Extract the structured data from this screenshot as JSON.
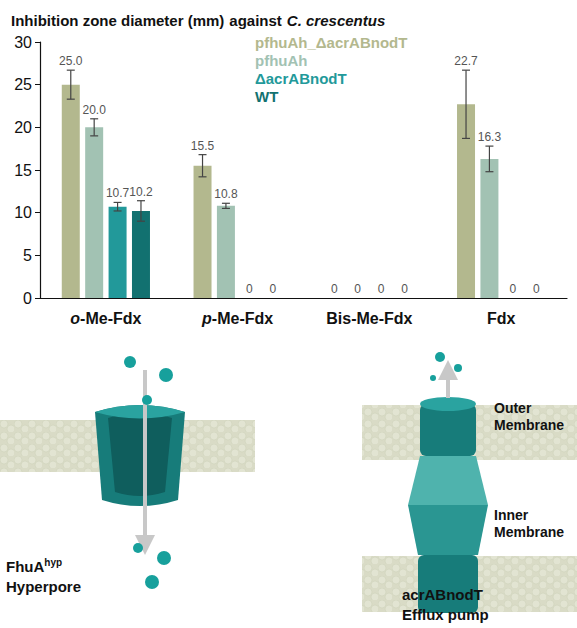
{
  "chart_data": {
    "type": "bar",
    "title": "Inhibition zone diameter (mm)",
    "subtitle": "against C. crescentus",
    "categories": [
      "o-Me-Fdx",
      "p-Me-Fdx",
      "Bis-Me-Fdx",
      "Fdx"
    ],
    "series": [
      {
        "name": "pfhuAh_ΔacrABnodT",
        "color": "#b3b88e",
        "values": [
          25.0,
          15.5,
          0,
          22.7
        ],
        "value_labels": [
          "25.0",
          "15.5",
          "0",
          "22.7"
        ],
        "errors": [
          1.7,
          1.3,
          null,
          4.0
        ]
      },
      {
        "name": "pfhuAh",
        "color": "#a2c2b3",
        "values": [
          20.0,
          10.8,
          0,
          16.3
        ],
        "value_labels": [
          "20.0",
          "10.8",
          "0",
          "16.3"
        ],
        "errors": [
          1.0,
          0.3,
          null,
          1.5
        ]
      },
      {
        "name": "ΔacrABnodT",
        "color": "#22999a",
        "values": [
          10.7,
          0,
          0,
          0
        ],
        "value_labels": [
          "10.7",
          "0",
          "0",
          "0"
        ],
        "errors": [
          0.5,
          null,
          null,
          null
        ]
      },
      {
        "name": "WT",
        "color": "#127170",
        "values": [
          10.2,
          0,
          0,
          0
        ],
        "value_labels": [
          "10.2",
          "0",
          "0",
          "0"
        ],
        "errors": [
          1.2,
          null,
          null,
          null
        ]
      }
    ],
    "ylim": [
      0,
      30
    ],
    "yticks": [
      0,
      5,
      10,
      15,
      20,
      25,
      30
    ],
    "grid": false,
    "legend": "top",
    "data_labels": true
  },
  "diagram": {
    "hyperpore": {
      "name": "FhuA",
      "superscript": "hyp",
      "label": "Hyperpore"
    },
    "efflux": {
      "outer_membrane": [
        "Outer",
        "Membrane"
      ],
      "inner_membrane": [
        "Inner",
        "Membrane"
      ],
      "name": "acrABnodT",
      "label": "Efflux pump"
    }
  }
}
